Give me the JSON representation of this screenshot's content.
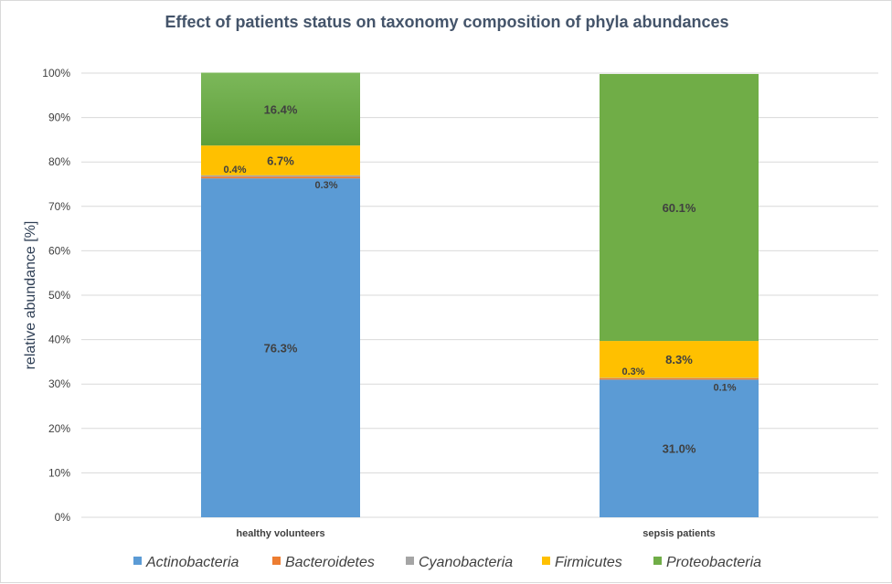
{
  "chart_data": {
    "type": "bar",
    "stacked": true,
    "title": "Effect of patients status on taxonomy composition of phyla abundances",
    "xlabel": "",
    "ylabel": "relative abundance [%]",
    "ylim": [
      0,
      100
    ],
    "yticks": [
      "0%",
      "10%",
      "20%",
      "30%",
      "40%",
      "50%",
      "60%",
      "70%",
      "80%",
      "90%",
      "100%"
    ],
    "categories": [
      "healthy volunteers",
      "sepsis patients"
    ],
    "series": [
      {
        "name": "Actinobacteria",
        "color": "#5b9bd5",
        "values": [
          76.3,
          31.0
        ],
        "labels": [
          "76.3%",
          "31.0%"
        ]
      },
      {
        "name": "Bacteroidetes",
        "color": "#ed7d31",
        "values": [
          0.4,
          0.3
        ],
        "labels": [
          "0.4%",
          "0.3%"
        ]
      },
      {
        "name": "Cyanobacteria",
        "color": "#a5a5a5",
        "values": [
          0.3,
          0.1
        ],
        "labels": [
          "0.3%",
          "0.1%"
        ]
      },
      {
        "name": "Firmicutes",
        "color": "#ffc000",
        "values": [
          6.7,
          8.3
        ],
        "labels": [
          "6.7%",
          "8.3%"
        ]
      },
      {
        "name": "Proteobacteria",
        "color": "#70ad47",
        "values": [
          16.4,
          60.1
        ],
        "labels": [
          "16.4%",
          "60.1%"
        ]
      }
    ],
    "legend_position": "bottom",
    "grid": true
  }
}
